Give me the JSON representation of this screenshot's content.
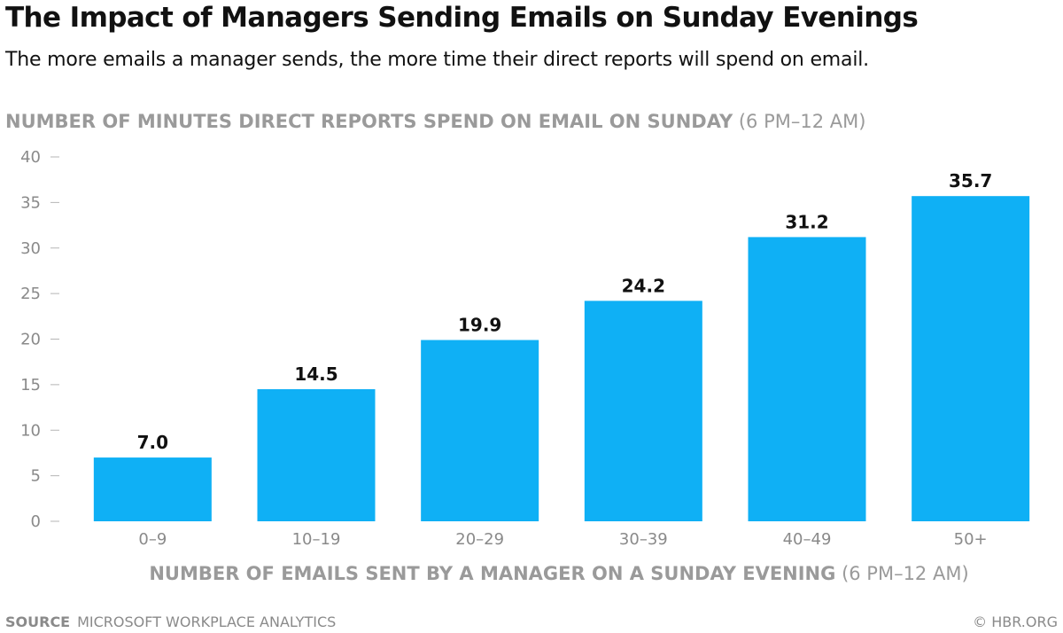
{
  "chart_data": {
    "type": "bar",
    "title": "The Impact of Managers Sending Emails on Sunday Evenings",
    "subtitle": "The more emails a manager sends, the more time their direct reports will spend on email.",
    "ylabel_main": "NUMBER OF MINUTES DIRECT REPORTS SPEND ON EMAIL ON SUNDAY",
    "ylabel_paren": "(6 PM–12 AM)",
    "xlabel_main": "NUMBER OF EMAILS SENT BY A MANAGER ON A SUNDAY EVENING",
    "xlabel_paren": "(6 PM–12 AM)",
    "categories": [
      "0–9",
      "10–19",
      "20–29",
      "30–39",
      "40–49",
      "50+"
    ],
    "values": [
      7.0,
      14.5,
      19.9,
      24.2,
      31.2,
      35.7
    ],
    "value_labels": [
      "7.0",
      "14.5",
      "19.9",
      "24.2",
      "31.2",
      "35.7"
    ],
    "ylim": [
      0,
      40
    ],
    "yticks": [
      0,
      5,
      10,
      15,
      20,
      25,
      30,
      35,
      40
    ],
    "grid": false,
    "bar_color": "#0fb0f5"
  },
  "footer": {
    "source_key": "SOURCE",
    "source_value": "MICROSOFT WORKPLACE ANALYTICS",
    "credit": "© HBR.ORG"
  }
}
